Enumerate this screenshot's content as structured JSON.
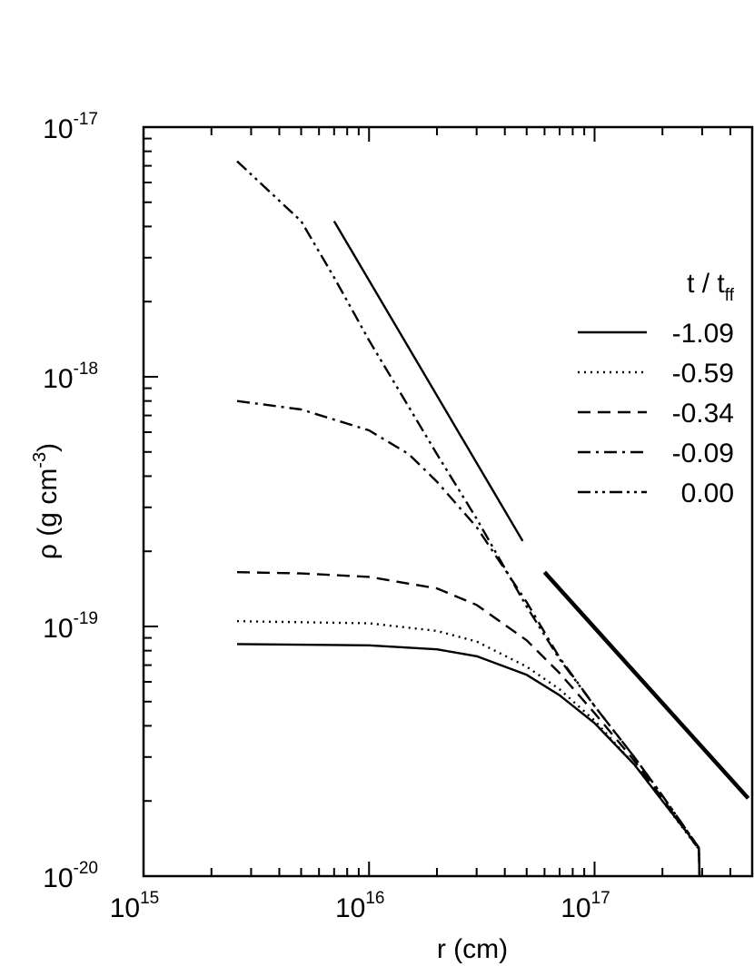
{
  "chart_data": {
    "type": "line",
    "x_scale": "log",
    "y_scale": "log",
    "xlabel": "r (cm)",
    "ylabel_parts": [
      "ρ (g cm",
      "-3",
      ")"
    ],
    "xlim": [
      1000000000000000.0,
      5e+17
    ],
    "ylim": [
      1e-20,
      1e-17
    ],
    "x_major_ticks": [
      {
        "value": 1000000000000000.0,
        "base": "10",
        "exp": "15"
      },
      {
        "value": 1e+16,
        "base": "10",
        "exp": "16"
      },
      {
        "value": 1e+17,
        "base": "10",
        "exp": "17"
      }
    ],
    "y_major_ticks": [
      {
        "value": 1e-20,
        "base": "10",
        "exp": "-20"
      },
      {
        "value": 1e-19,
        "base": "10",
        "exp": "-19"
      },
      {
        "value": 1e-18,
        "base": "10",
        "exp": "-18"
      },
      {
        "value": 1e-17,
        "base": "10",
        "exp": "-17"
      }
    ],
    "grid": false,
    "legend": {
      "placement": "top-right",
      "title_base": "t / t",
      "title_sub": "ff"
    },
    "series": [
      {
        "name": "-1.09",
        "dash": "solid",
        "x": [
          2600000000000000.0,
          1e+16,
          2e+16,
          3e+16,
          5e+16,
          7e+16,
          1e+17,
          1.5e+17,
          2e+17,
          2.9e+17,
          2.92e+17
        ],
        "y": [
          8.5e-20,
          8.4e-20,
          8.1e-20,
          7.6e-20,
          6.4e-20,
          5.3e-20,
          4.1e-20,
          2.8e-20,
          2e-20,
          1.3e-20,
          1e-20
        ]
      },
      {
        "name": "-0.59",
        "dash": "dotted",
        "x": [
          2600000000000000.0,
          1e+16,
          2e+16,
          3e+16,
          5e+16,
          7e+16,
          1e+17,
          1.5e+17,
          2e+17,
          2.9e+17,
          2.92e+17
        ],
        "y": [
          1.05e-19,
          1.03e-19,
          9.6e-20,
          8.7e-20,
          6.9e-20,
          5.6e-20,
          4.2e-20,
          2.8e-20,
          2e-20,
          1.28e-20,
          1e-20
        ]
      },
      {
        "name": "-0.34",
        "dash": "dashed",
        "x": [
          2600000000000000.0,
          5000000000000000.0,
          1e+16,
          2e+16,
          3e+16,
          5e+16,
          7e+16,
          1e+17,
          1.5e+17,
          2e+17,
          2.9e+17,
          2.92e+17
        ],
        "y": [
          1.65e-19,
          1.63e-19,
          1.58e-19,
          1.42e-19,
          1.22e-19,
          8.8e-20,
          6.5e-20,
          4.5e-20,
          2.9e-20,
          2.05e-20,
          1.28e-20,
          1e-20
        ]
      },
      {
        "name": "-0.09",
        "dash": "dashdot",
        "x": [
          2600000000000000.0,
          5000000000000000.0,
          1e+16,
          1.5e+16,
          2e+16,
          3e+16,
          5e+16,
          7e+16,
          1e+17,
          1.5e+17,
          2e+17,
          2.9e+17,
          2.92e+17
        ],
        "y": [
          8e-19,
          7.4e-19,
          6.1e-19,
          4.9e-19,
          3.8e-19,
          2.5e-19,
          1.25e-19,
          7.5e-20,
          4.8e-20,
          3e-20,
          2.1e-20,
          1.3e-20,
          1e-20
        ]
      },
      {
        "name": "0.00",
        "dash": "dashdotdot",
        "x": [
          2600000000000000.0,
          5000000000000000.0,
          7000000000000000.0,
          1e+16,
          2e+16,
          3e+16,
          5e+16,
          7e+16,
          1e+17,
          1.5e+17,
          2e+17,
          2.9e+17,
          2.92e+17
        ],
        "y": [
          7.3e-18,
          4.2e-18,
          2.5e-18,
          1.4e-18,
          4.9e-19,
          2.7e-19,
          1.2e-19,
          7.4e-20,
          4.8e-20,
          3e-20,
          2.1e-20,
          1.3e-20,
          1e-20
        ]
      }
    ],
    "reference_lines": [
      {
        "x": [
          7000000000000000.0,
          4.8e+16
        ],
        "y": [
          4.2e-18,
          2.2e-19
        ],
        "weight": "thin"
      },
      {
        "x": [
          6e+16,
          4.8e+17
        ],
        "y": [
          1.65e-19,
          2.05e-20
        ],
        "weight": "thick"
      }
    ]
  }
}
